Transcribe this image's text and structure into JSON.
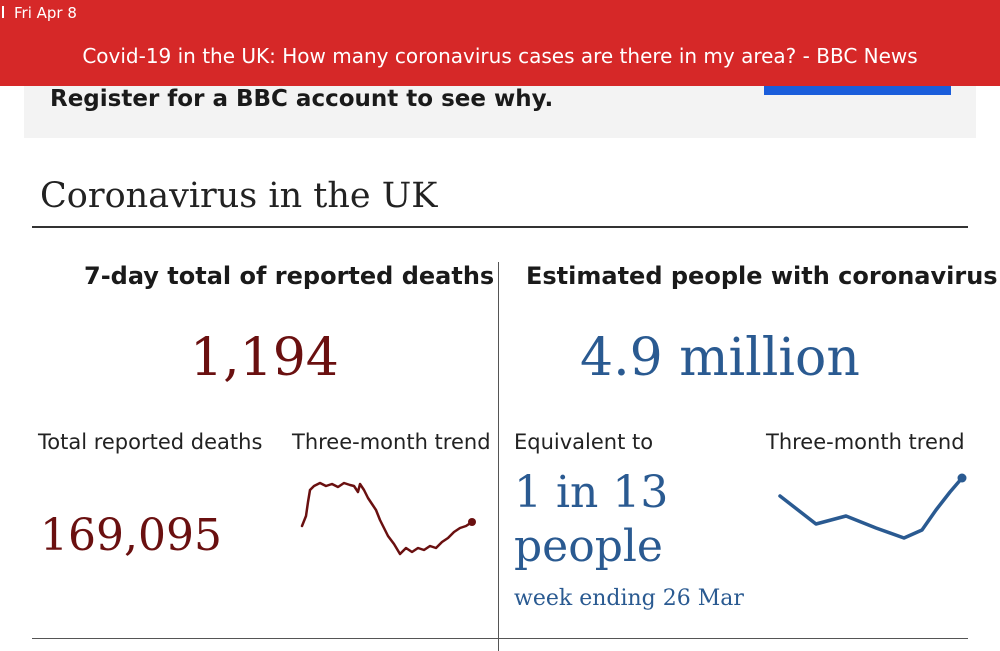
{
  "status_bar": {
    "date": "Fri Apr 8"
  },
  "banner": {
    "title": "Covid-19 in the UK: How many coronavirus cases are there in my area? - BBC News"
  },
  "register": {
    "text": "Register for a BBC account to see why."
  },
  "section": {
    "title": "Coronavirus in the UK"
  },
  "deaths": {
    "heading": "7-day total of reported deaths",
    "value": "1,194",
    "total_label": "Total reported deaths",
    "total_value": "169,095",
    "trend_label": "Three-month trend",
    "color": "#6a1010",
    "trend_icon": "deaths-trend-sparkline"
  },
  "infections": {
    "heading": "Estimated people with coronavirus",
    "value": "4.9 million",
    "equivalent_label": "Equivalent to",
    "equivalent_line1": "1 in 13",
    "equivalent_line2": "people",
    "week_note": "week ending 26 Mar",
    "trend_label": "Three-month trend",
    "color": "#2a5a91",
    "trend_icon": "infections-trend-sparkline"
  }
}
